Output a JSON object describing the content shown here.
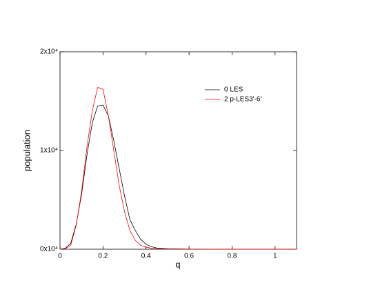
{
  "chart_data": {
    "type": "line",
    "x_label": "q",
    "y_label": "population",
    "x": [
      0,
      0.025,
      0.05,
      0.075,
      0.1,
      0.125,
      0.15,
      0.175,
      0.2,
      0.225,
      0.25,
      0.275,
      0.3,
      0.325,
      0.35,
      0.375,
      0.4,
      0.425,
      0.45,
      0.5,
      0.6,
      0.8,
      1.1
    ],
    "series": [
      {
        "name": "0 LES",
        "color": "#000000",
        "values": [
          0,
          100,
          600,
          2500,
          5500,
          9500,
          12800,
          14500,
          14600,
          13500,
          11000,
          8200,
          5400,
          3000,
          1900,
          1000,
          500,
          250,
          120,
          50,
          20,
          0,
          0
        ]
      },
      {
        "name": "2 p-LES3'-6'",
        "color": "#ff0000",
        "values": [
          0,
          50,
          400,
          2400,
          5800,
          10300,
          14000,
          16400,
          16200,
          13500,
          10000,
          6500,
          3800,
          1900,
          900,
          400,
          200,
          100,
          50,
          20,
          10,
          0,
          0
        ]
      }
    ],
    "xlim": [
      0,
      1.1
    ],
    "xticks": [
      0,
      0.2,
      0.4,
      0.6,
      0.8,
      1
    ],
    "ylim": [
      0,
      20000
    ],
    "yticks": [
      {
        "value": 0,
        "label": "0x10⁴"
      },
      {
        "value": 10000,
        "label": "1x10⁴"
      },
      {
        "value": 20000,
        "label": "2x10⁴"
      }
    ],
    "legend": "upper right"
  }
}
